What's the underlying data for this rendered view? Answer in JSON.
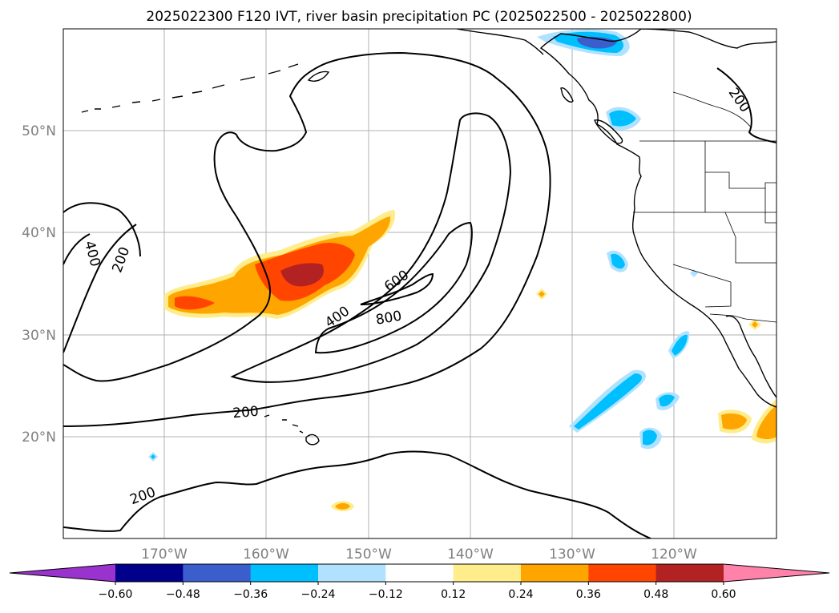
{
  "title": "2025022300 F120 IVT, river basin precipitation PC (2025022500 - 2025022800)",
  "lon_labels": [
    "170°W",
    "160°W",
    "150°W",
    "140°W",
    "130°W",
    "120°W"
  ],
  "lat_labels": [
    "50°N",
    "40°N",
    "30°N",
    "20°N"
  ],
  "ivt_labels": [
    "400",
    "200",
    "600",
    "400",
    "800",
    "200",
    "200",
    "200"
  ],
  "colorbar": {
    "colors": [
      "#9a32cd",
      "#00008b",
      "#3a5fcd",
      "#00bfff",
      "#b0e2ff",
      "#ffffff",
      "#ffec8b",
      "#ffa500",
      "#ff4500",
      "#b22222",
      "#ff82ab"
    ],
    "ticks": [
      "−0.60",
      "−0.48",
      "−0.36",
      "−0.24",
      "−0.12",
      "0.12",
      "0.24",
      "0.36",
      "0.48",
      "0.60"
    ]
  },
  "colors": {
    "grid": "#b0b0b0",
    "axis_labels": "#808080",
    "contour": "#000000"
  }
}
